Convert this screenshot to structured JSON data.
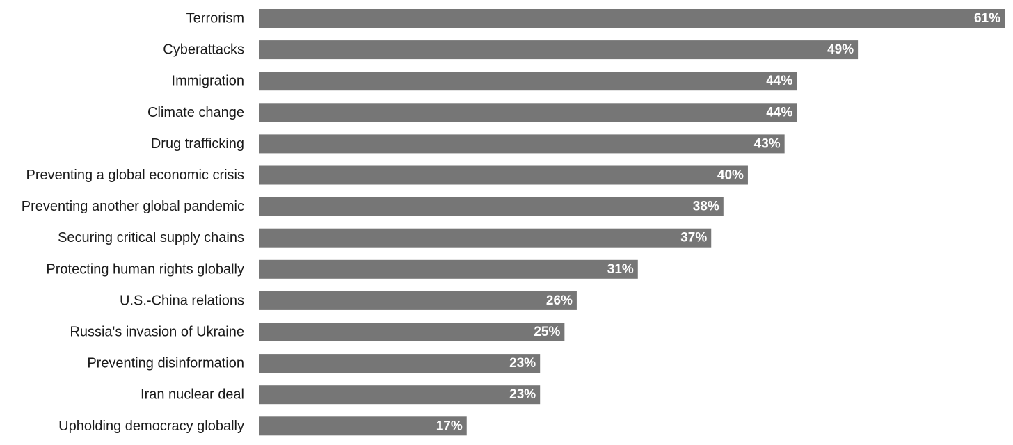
{
  "chart_data": {
    "type": "bar",
    "orientation": "horizontal",
    "categories": [
      "Terrorism",
      "Cyberattacks",
      "Immigration",
      "Climate change",
      "Drug trafficking",
      "Preventing a global economic crisis",
      "Preventing another global pandemic",
      "Securing critical supply chains",
      "Protecting human rights globally",
      "U.S.-China relations",
      "Russia's invasion of Ukraine",
      "Preventing disinformation",
      "Iran nuclear deal",
      "Upholding democracy globally"
    ],
    "values": [
      61,
      49,
      44,
      44,
      43,
      40,
      38,
      37,
      31,
      26,
      25,
      23,
      23,
      17
    ],
    "value_labels": [
      "61%",
      "49%",
      "44%",
      "44%",
      "43%",
      "40%",
      "38%",
      "37%",
      "31%",
      "26%",
      "25%",
      "23%",
      "23%",
      "17%"
    ],
    "unit": "%",
    "xlim": [
      0,
      61
    ],
    "grid": false,
    "legend": "none",
    "bar_color": "#767676",
    "label_color": "#ffffff"
  }
}
